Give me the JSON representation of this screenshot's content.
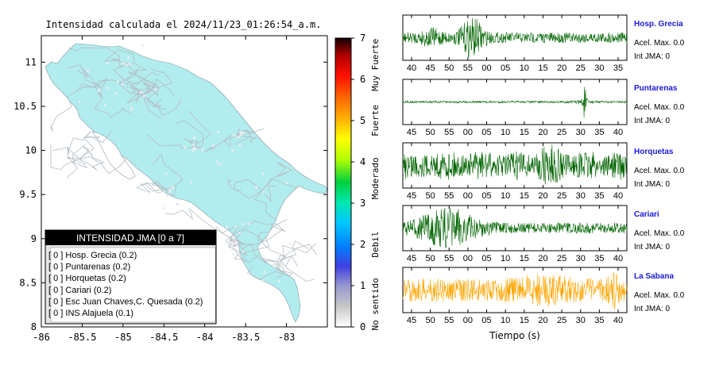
{
  "title": "Intensidad calculada el 2024/11/23_01:26:54_a.m.",
  "map": {
    "x_ticks": [
      "-86",
      "-85.5",
      "-85",
      "-84.5",
      "-84",
      "-83.5",
      "-83"
    ],
    "y_ticks": [
      "11",
      "10.5",
      "10",
      "9.5",
      "9",
      "8.5",
      "8"
    ],
    "xlim": [
      -86,
      -82.5
    ],
    "ylim": [
      8,
      11.3
    ],
    "land_color": "#b1ecee",
    "road_color": "#b4bcc4"
  },
  "legend": {
    "header": "INTENSIDAD JMA [0 a 7]",
    "items": [
      "[ 0 ]  Hosp. Grecia (0.2)",
      "[ 0 ]  Puntarenas (0.2)",
      "[ 0 ]  Horquetas (0.2)",
      "[ 0 ]  Cariari (0.2)",
      "[ 0 ]  Esc Juan Chaves,C. Quesada (0.2)",
      "[ 0 ]  INS Alajuela (0.1)"
    ]
  },
  "colorbar": {
    "ticks": [
      "0",
      "1",
      "2",
      "3",
      "4",
      "5",
      "6",
      "7"
    ],
    "labels": [
      "No sentido",
      "Debil",
      "Moderado",
      "Fuerte",
      "Muy Fuerte"
    ],
    "range": [
      0,
      7
    ]
  },
  "chart_data": [
    {
      "type": "scatter",
      "title": "Intensidad calculada el 2024/11/23_01:26:54_a.m.",
      "xlim": [
        -86,
        -82.5
      ],
      "ylim": [
        8,
        11.3
      ],
      "series": [
        {
          "values": [
            0.2,
            0.2,
            0.2,
            0.2,
            0.2,
            0.1
          ]
        }
      ]
    },
    {
      "type": "line",
      "xlabel": "Tiempo (s)",
      "series": [
        {
          "name": "Hosp. Grecia",
          "color": "#006400",
          "peak_acceleration": "0.0",
          "jma": "0",
          "ticks": [
            "40",
            "45",
            "50",
            "55",
            "00",
            "05",
            "10",
            "15",
            "20",
            "25",
            "30",
            "35"
          ]
        },
        {
          "name": "Puntarenas",
          "color": "#006400",
          "peak_acceleration": "0.0",
          "jma": "0",
          "ticks": [
            "45",
            "50",
            "55",
            "00",
            "05",
            "10",
            "15",
            "20",
            "25",
            "30",
            "35",
            "40"
          ]
        },
        {
          "name": "Horquetas",
          "color": "#006400",
          "peak_acceleration": "0.0",
          "jma": "0",
          "ticks": [
            "45",
            "50",
            "55",
            "00",
            "05",
            "10",
            "15",
            "20",
            "25",
            "30",
            "35",
            "40"
          ]
        },
        {
          "name": "Cariari",
          "color": "#006400",
          "peak_acceleration": "0.0",
          "jma": "0",
          "ticks": [
            "45",
            "50",
            "55",
            "00",
            "05",
            "10",
            "15",
            "20",
            "25",
            "30",
            "35",
            "40"
          ]
        },
        {
          "name": "La Sabana",
          "color": "#ffa500",
          "peak_acceleration": "0.0",
          "jma": "0",
          "ticks": [
            "45",
            "50",
            "55",
            "00",
            "05",
            "10",
            "15",
            "20",
            "25",
            "30",
            "35",
            "40"
          ]
        }
      ]
    }
  ],
  "waveform_labels": {
    "accel": "Acel. Max.",
    "int": "Int JMA:",
    "xlabel": "Tiempo (s)"
  }
}
